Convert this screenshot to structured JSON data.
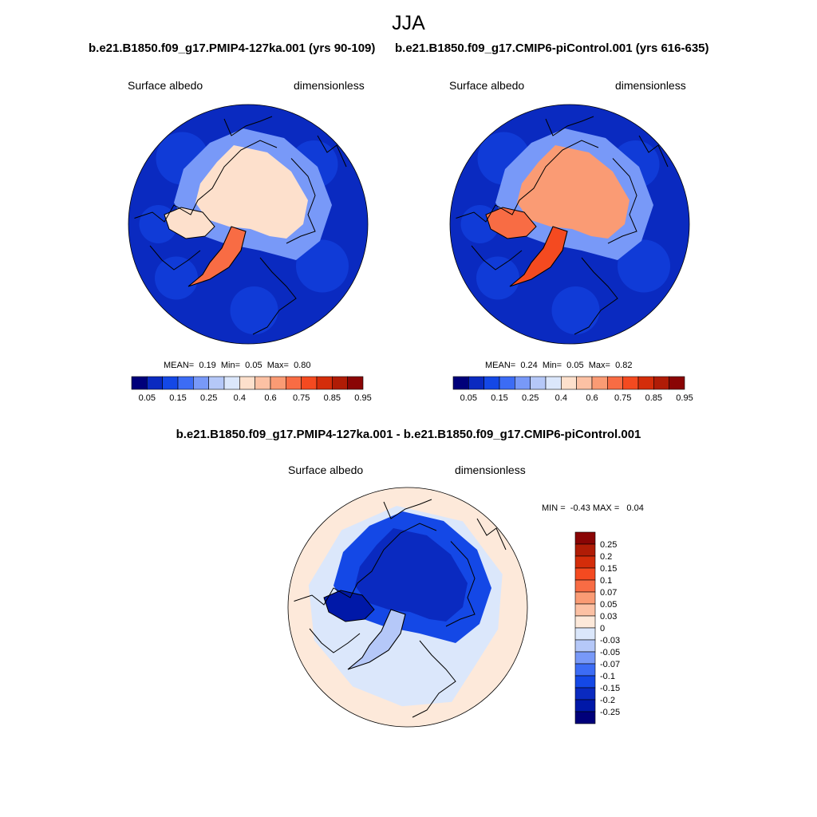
{
  "figure": {
    "title": "JJA",
    "panels": [
      {
        "run": "b.e21.B1850.f09_g17.PMIP4-127ka.001 (yrs 90-109)",
        "variable": "Surface albedo",
        "units": "dimensionless",
        "stats": {
          "mean_label": "MEAN=",
          "mean": "0.19",
          "min_label": "Min=",
          "min": "0.05",
          "max_label": "Max=",
          "max": "0.80"
        }
      },
      {
        "run": "b.e21.B1850.f09_g17.CMIP6-piControl.001 (yrs 616-635)",
        "variable": "Surface albedo",
        "units": "dimensionless",
        "stats": {
          "mean_label": "MEAN=",
          "mean": "0.24",
          "min_label": "Min=",
          "min": "0.05",
          "max_label": "Max=",
          "max": "0.82"
        }
      }
    ],
    "diff_panel": {
      "title": "b.e21.B1850.f09_g17.PMIP4-127ka.001 - b.e21.B1850.f09_g17.CMIP6-piControl.001",
      "variable": "Surface albedo",
      "units": "dimensionless",
      "stats": {
        "min_label": "MIN =",
        "min": "-0.43",
        "max_label": "MAX =",
        "max": "0.04"
      }
    }
  },
  "chart_data": [
    {
      "type": "heatmap",
      "projection": "north polar stereographic",
      "title": "b.e21.B1850.f09_g17.PMIP4-127ka.001 (yrs 90-109)",
      "variable": "Surface albedo",
      "units": "dimensionless",
      "season": "JJA",
      "mean": 0.19,
      "min": 0.05,
      "max": 0.8,
      "regions": {
        "open_ocean_and_land": 0.1,
        "arctic_sea_ice": 0.45,
        "greenland_ice_sheet": 0.75
      },
      "colorbar": {
        "orientation": "horizontal",
        "levels": [
          0.05,
          0.1,
          0.15,
          0.2,
          0.25,
          0.3,
          0.4,
          0.5,
          0.6,
          0.7,
          0.75,
          0.8,
          0.85,
          0.9,
          0.95
        ],
        "tick_labels": [
          "0.05",
          "0.15",
          "0.25",
          "0.4",
          "0.6",
          "0.75",
          "0.85",
          "0.95"
        ],
        "colors": [
          "#00007a",
          "#0a2ac0",
          "#1448e6",
          "#3c6cf5",
          "#7899f8",
          "#b5c8f8",
          "#dbe7fb",
          "#fde0cc",
          "#fcc1a4",
          "#fa9b74",
          "#f86c44",
          "#f44a20",
          "#d42d0a",
          "#b01c06",
          "#8a0505"
        ]
      }
    },
    {
      "type": "heatmap",
      "projection": "north polar stereographic",
      "title": "b.e21.B1850.f09_g17.CMIP6-piControl.001 (yrs 616-635)",
      "variable": "Surface albedo",
      "units": "dimensionless",
      "season": "JJA",
      "mean": 0.24,
      "min": 0.05,
      "max": 0.82,
      "regions": {
        "open_ocean_and_land": 0.1,
        "arctic_sea_ice": 0.65,
        "greenland_ice_sheet": 0.8
      },
      "colorbar": {
        "orientation": "horizontal",
        "levels": [
          0.05,
          0.1,
          0.15,
          0.2,
          0.25,
          0.3,
          0.4,
          0.5,
          0.6,
          0.7,
          0.75,
          0.8,
          0.85,
          0.9,
          0.95
        ],
        "tick_labels": [
          "0.05",
          "0.15",
          "0.25",
          "0.4",
          "0.6",
          "0.75",
          "0.85",
          "0.95"
        ],
        "colors": [
          "#00007a",
          "#0a2ac0",
          "#1448e6",
          "#3c6cf5",
          "#7899f8",
          "#b5c8f8",
          "#dbe7fb",
          "#fde0cc",
          "#fcc1a4",
          "#fa9b74",
          "#f86c44",
          "#f44a20",
          "#d42d0a",
          "#b01c06",
          "#8a0505"
        ]
      }
    },
    {
      "type": "heatmap",
      "projection": "north polar stereographic",
      "title": "b.e21.B1850.f09_g17.PMIP4-127ka.001 - b.e21.B1850.f09_g17.CMIP6-piControl.001",
      "variable": "Surface albedo",
      "units": "dimensionless",
      "season": "JJA",
      "min": -0.43,
      "max": 0.04,
      "regions": {
        "far_field": 0.02,
        "subarctic_land": -0.01,
        "arctic_ocean": -0.2,
        "canadian_archipelago": -0.25,
        "greenland_ice_sheet": -0.05
      },
      "colorbar": {
        "orientation": "vertical",
        "tick_labels": [
          "0.25",
          "0.2",
          "0.15",
          "0.1",
          "0.07",
          "0.05",
          "0.03",
          "0",
          "-0.03",
          "-0.05",
          "-0.07",
          "-0.1",
          "-0.15",
          "-0.2",
          "-0.25"
        ],
        "colors": [
          "#8a0505",
          "#b01c06",
          "#d42d0a",
          "#f44a20",
          "#f86c44",
          "#fa9b74",
          "#fcc1a4",
          "#fde9da",
          "#dbe7fb",
          "#b5c8f8",
          "#7899f8",
          "#3c6cf5",
          "#1448e6",
          "#0a2ac0",
          "#0018a8",
          "#00007a"
        ]
      }
    }
  ]
}
